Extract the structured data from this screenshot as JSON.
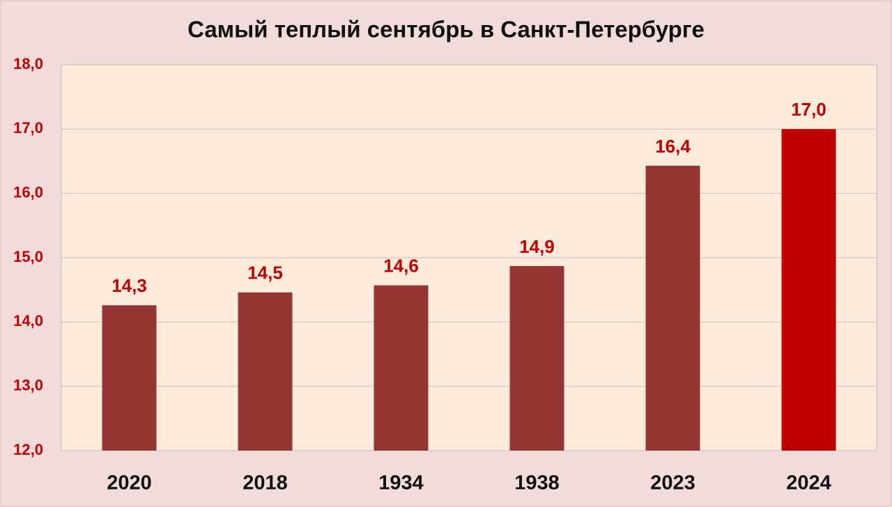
{
  "chart_data": {
    "type": "bar",
    "title": "Самый теплый сентябрь в Санкт-Петербурге",
    "categories": [
      "2020",
      "2018",
      "1934",
      "1938",
      "2023",
      "2024"
    ],
    "values": [
      14.26,
      14.46,
      14.57,
      14.87,
      16.43,
      17.0
    ],
    "value_labels": [
      "14,3",
      "14,5",
      "14,6",
      "14,9",
      "16,4",
      "17,0"
    ],
    "colors": [
      "#943634",
      "#943634",
      "#943634",
      "#943634",
      "#943634",
      "#c00000"
    ],
    "ylim": [
      12,
      18
    ],
    "yticks": [
      {
        "value": 12,
        "label": "12,0"
      },
      {
        "value": 13,
        "label": "13,0"
      },
      {
        "value": 14,
        "label": "14,0"
      },
      {
        "value": 15,
        "label": "15,0"
      },
      {
        "value": 16,
        "label": "16,0"
      },
      {
        "value": 17,
        "label": "17,0"
      },
      {
        "value": 18,
        "label": "18,0"
      }
    ],
    "grid": true
  }
}
